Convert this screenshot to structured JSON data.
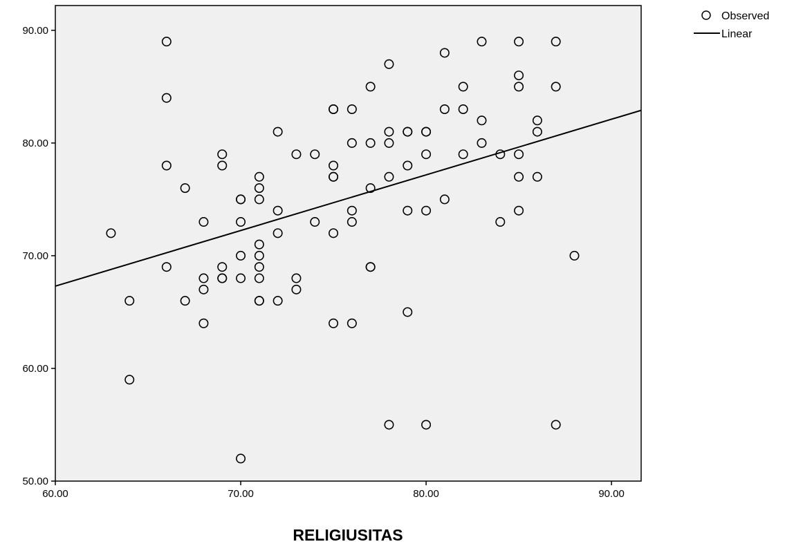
{
  "chart_data": {
    "type": "scatter",
    "xlabel": "RELIGIUSITAS",
    "ylabel": "",
    "xlim": [
      60,
      91.6
    ],
    "ylim": [
      50,
      92.2
    ],
    "x_ticks": [
      "60.00",
      "70.00",
      "80.00",
      "90.00"
    ],
    "y_ticks": [
      "50.00",
      "60.00",
      "70.00",
      "80.00",
      "90.00"
    ],
    "x_tick_values": [
      60,
      70,
      80,
      90
    ],
    "y_tick_values": [
      50,
      60,
      70,
      80,
      90
    ],
    "grid": false,
    "legend_position": "top-right",
    "legend": [
      {
        "label": "Observed",
        "kind": "marker"
      },
      {
        "label": "Linear",
        "kind": "line"
      }
    ],
    "colors": {
      "plot_background": "#f0f0f0",
      "marker": "#000000",
      "line": "#000000"
    },
    "fit_line": {
      "x": [
        60,
        91.6
      ],
      "y": [
        67.3,
        82.9
      ]
    },
    "series": [
      {
        "name": "Observed",
        "points": [
          [
            63,
            72
          ],
          [
            64,
            66
          ],
          [
            64,
            59
          ],
          [
            66,
            89
          ],
          [
            66,
            84
          ],
          [
            66,
            78
          ],
          [
            66,
            69
          ],
          [
            67,
            76
          ],
          [
            67,
            66
          ],
          [
            68,
            73
          ],
          [
            68,
            68
          ],
          [
            68,
            67
          ],
          [
            68,
            64
          ],
          [
            69,
            79
          ],
          [
            69,
            78
          ],
          [
            69,
            69
          ],
          [
            69,
            68
          ],
          [
            69,
            68
          ],
          [
            70,
            75
          ],
          [
            70,
            75
          ],
          [
            70,
            73
          ],
          [
            70,
            70
          ],
          [
            70,
            68
          ],
          [
            70,
            52
          ],
          [
            71,
            77
          ],
          [
            71,
            76
          ],
          [
            71,
            75
          ],
          [
            71,
            71
          ],
          [
            71,
            70
          ],
          [
            71,
            69
          ],
          [
            71,
            68
          ],
          [
            71,
            66
          ],
          [
            71,
            66
          ],
          [
            72,
            81
          ],
          [
            72,
            74
          ],
          [
            72,
            72
          ],
          [
            72,
            66
          ],
          [
            73,
            79
          ],
          [
            73,
            68
          ],
          [
            73,
            67
          ],
          [
            74,
            79
          ],
          [
            74,
            73
          ],
          [
            75,
            83
          ],
          [
            75,
            83
          ],
          [
            75,
            78
          ],
          [
            75,
            77
          ],
          [
            75,
            77
          ],
          [
            75,
            72
          ],
          [
            75,
            64
          ],
          [
            76,
            83
          ],
          [
            76,
            80
          ],
          [
            76,
            74
          ],
          [
            76,
            73
          ],
          [
            76,
            64
          ],
          [
            77,
            85
          ],
          [
            77,
            80
          ],
          [
            77,
            76
          ],
          [
            77,
            69
          ],
          [
            77,
            69
          ],
          [
            78,
            87
          ],
          [
            78,
            81
          ],
          [
            78,
            80
          ],
          [
            78,
            77
          ],
          [
            78,
            55
          ],
          [
            79,
            81
          ],
          [
            79,
            81
          ],
          [
            79,
            78
          ],
          [
            79,
            74
          ],
          [
            79,
            65
          ],
          [
            80,
            81
          ],
          [
            80,
            81
          ],
          [
            80,
            79
          ],
          [
            80,
            74
          ],
          [
            80,
            55
          ],
          [
            81,
            88
          ],
          [
            81,
            83
          ],
          [
            81,
            75
          ],
          [
            82,
            85
          ],
          [
            82,
            83
          ],
          [
            82,
            79
          ],
          [
            83,
            89
          ],
          [
            83,
            82
          ],
          [
            83,
            80
          ],
          [
            84,
            79
          ],
          [
            84,
            73
          ],
          [
            85,
            89
          ],
          [
            85,
            86
          ],
          [
            85,
            85
          ],
          [
            85,
            79
          ],
          [
            85,
            77
          ],
          [
            85,
            74
          ],
          [
            86,
            82
          ],
          [
            86,
            81
          ],
          [
            86,
            77
          ],
          [
            87,
            89
          ],
          [
            87,
            85
          ],
          [
            87,
            55
          ],
          [
            88,
            70
          ]
        ]
      }
    ]
  }
}
